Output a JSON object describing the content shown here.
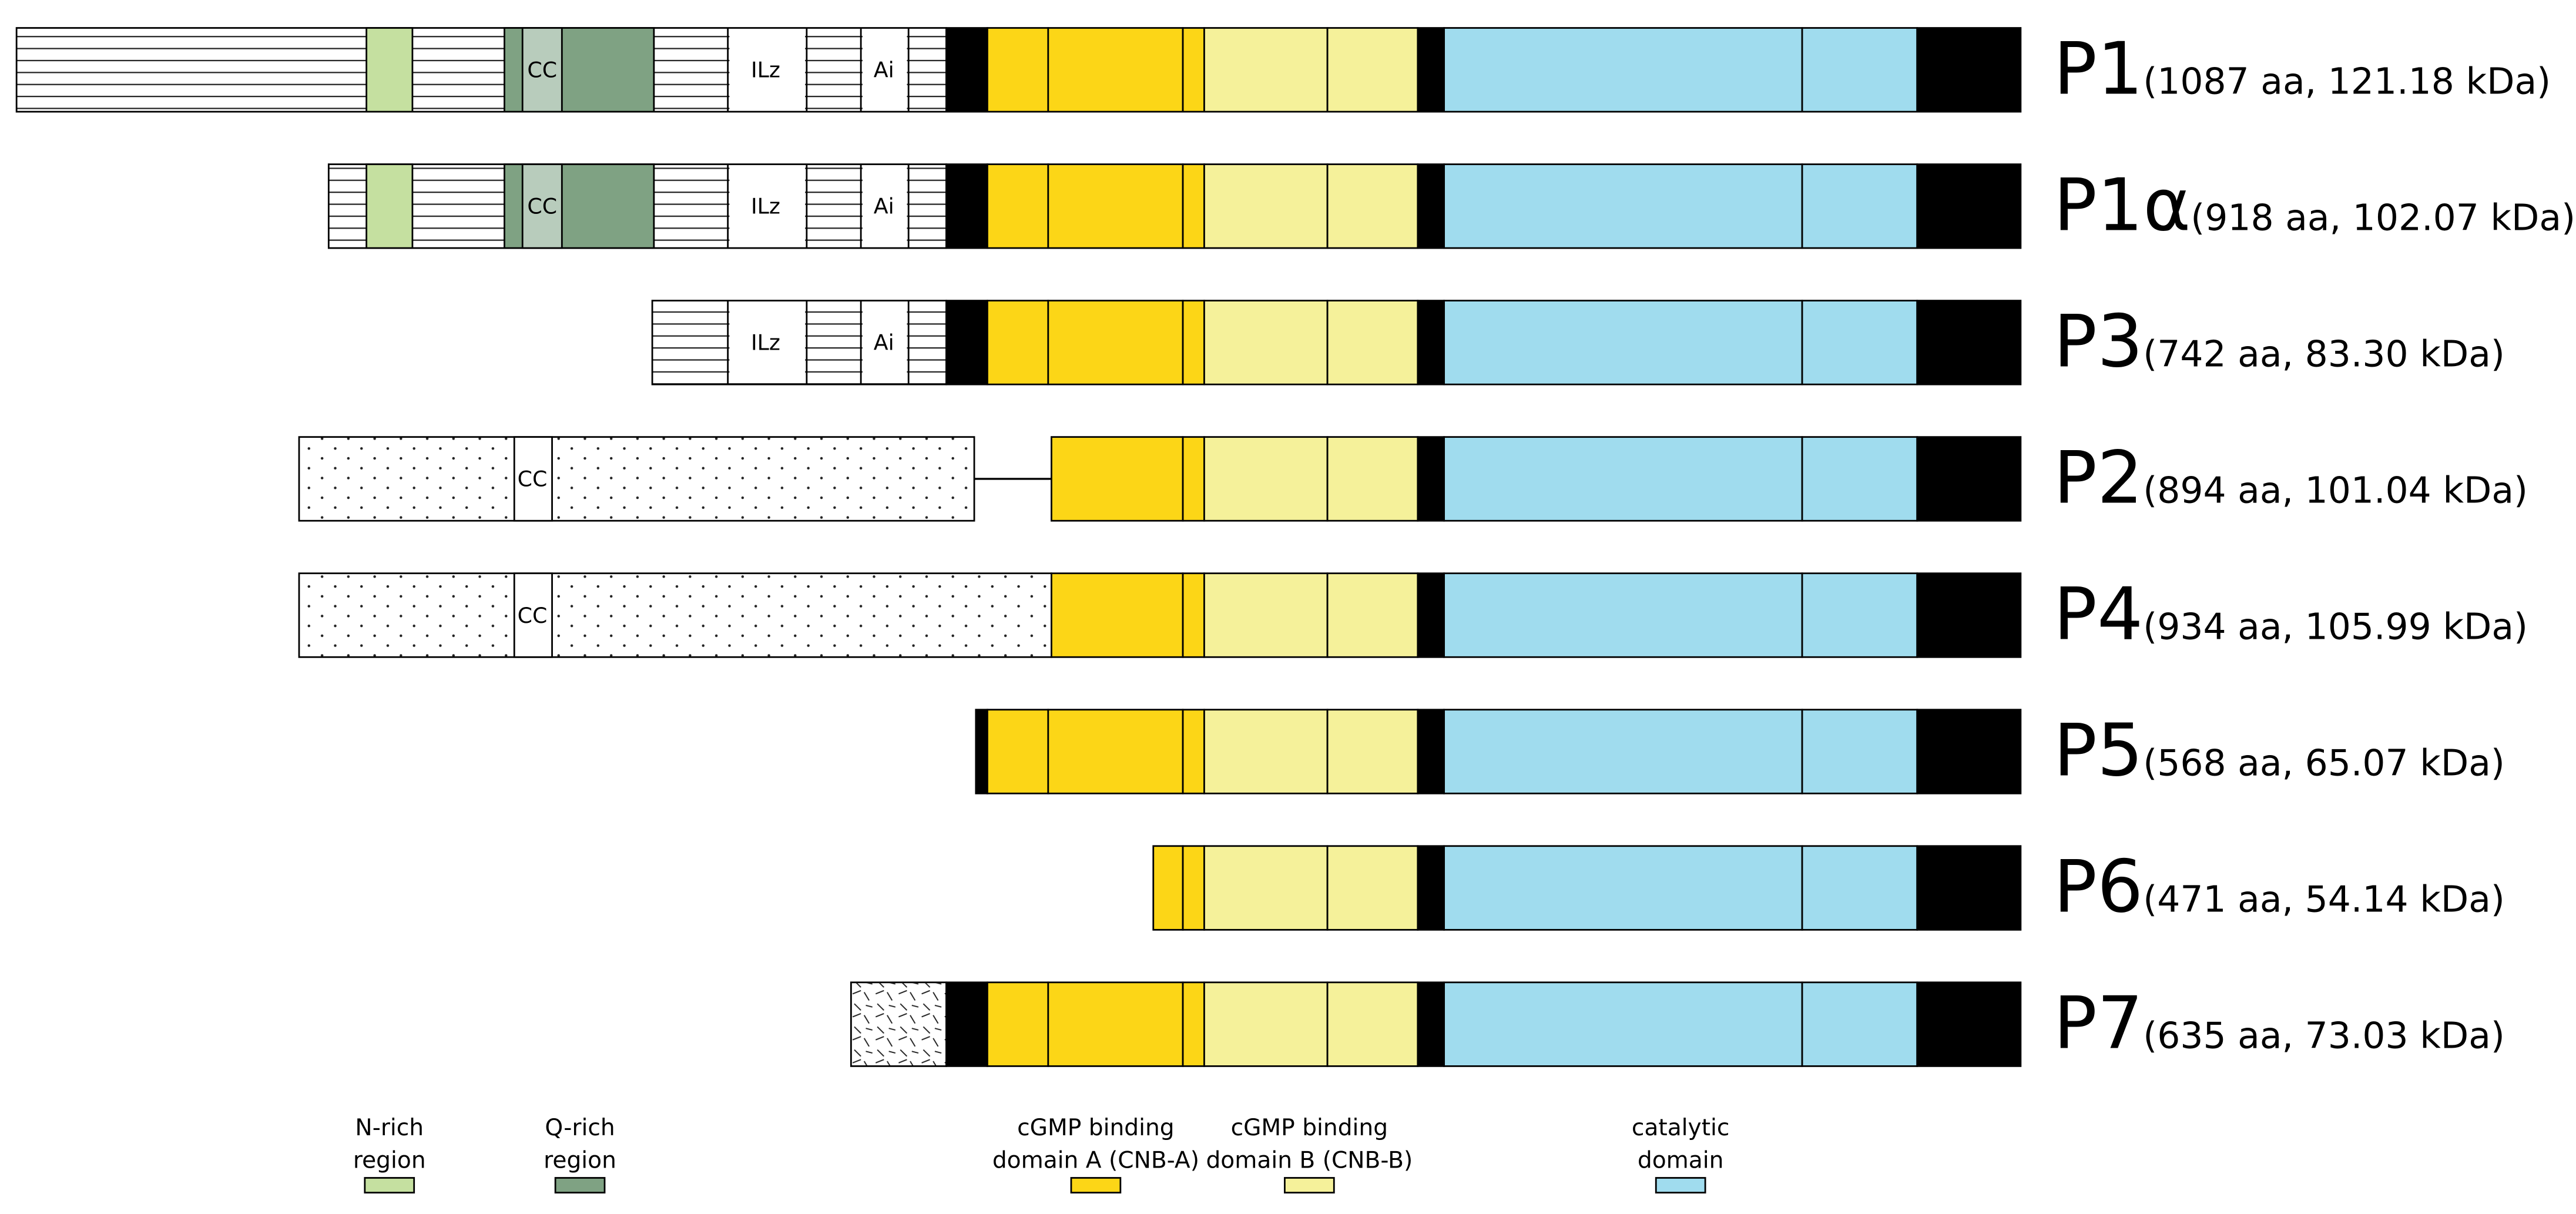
{
  "proteins": [
    {
      "name": "P1",
      "info": "(1087 aa, 121.18 kDa)"
    },
    {
      "name": "P1α",
      "info": "(918 aa, 102.07 kDa)"
    },
    {
      "name": "P3",
      "info": "(742 aa, 83.30 kDa)"
    },
    {
      "name": "P2",
      "info": "(894 aa, 101.04 kDa)"
    },
    {
      "name": "P4",
      "info": "(934 aa, 105.99 kDa)"
    },
    {
      "name": "P5",
      "info": "(568 aa, 65.07 kDa)"
    },
    {
      "name": "P6",
      "info": "(471 aa, 54.14 kDa)"
    },
    {
      "name": "P7",
      "info": "(635 aa, 73.03 kDa)"
    }
  ],
  "domain_labels": {
    "cc": "CC",
    "ilz": "ILz",
    "ai": "Ai"
  },
  "legend": [
    {
      "lines": [
        "N-rich",
        "region"
      ]
    },
    {
      "lines": [
        "Q-rich",
        "region"
      ]
    },
    {
      "lines": [
        "cGMP binding",
        "domain A (CNB-A)"
      ]
    },
    {
      "lines": [
        "cGMP binding",
        "domain B (CNB-B)"
      ]
    },
    {
      "lines": [
        "catalytic",
        "domain"
      ]
    }
  ]
}
